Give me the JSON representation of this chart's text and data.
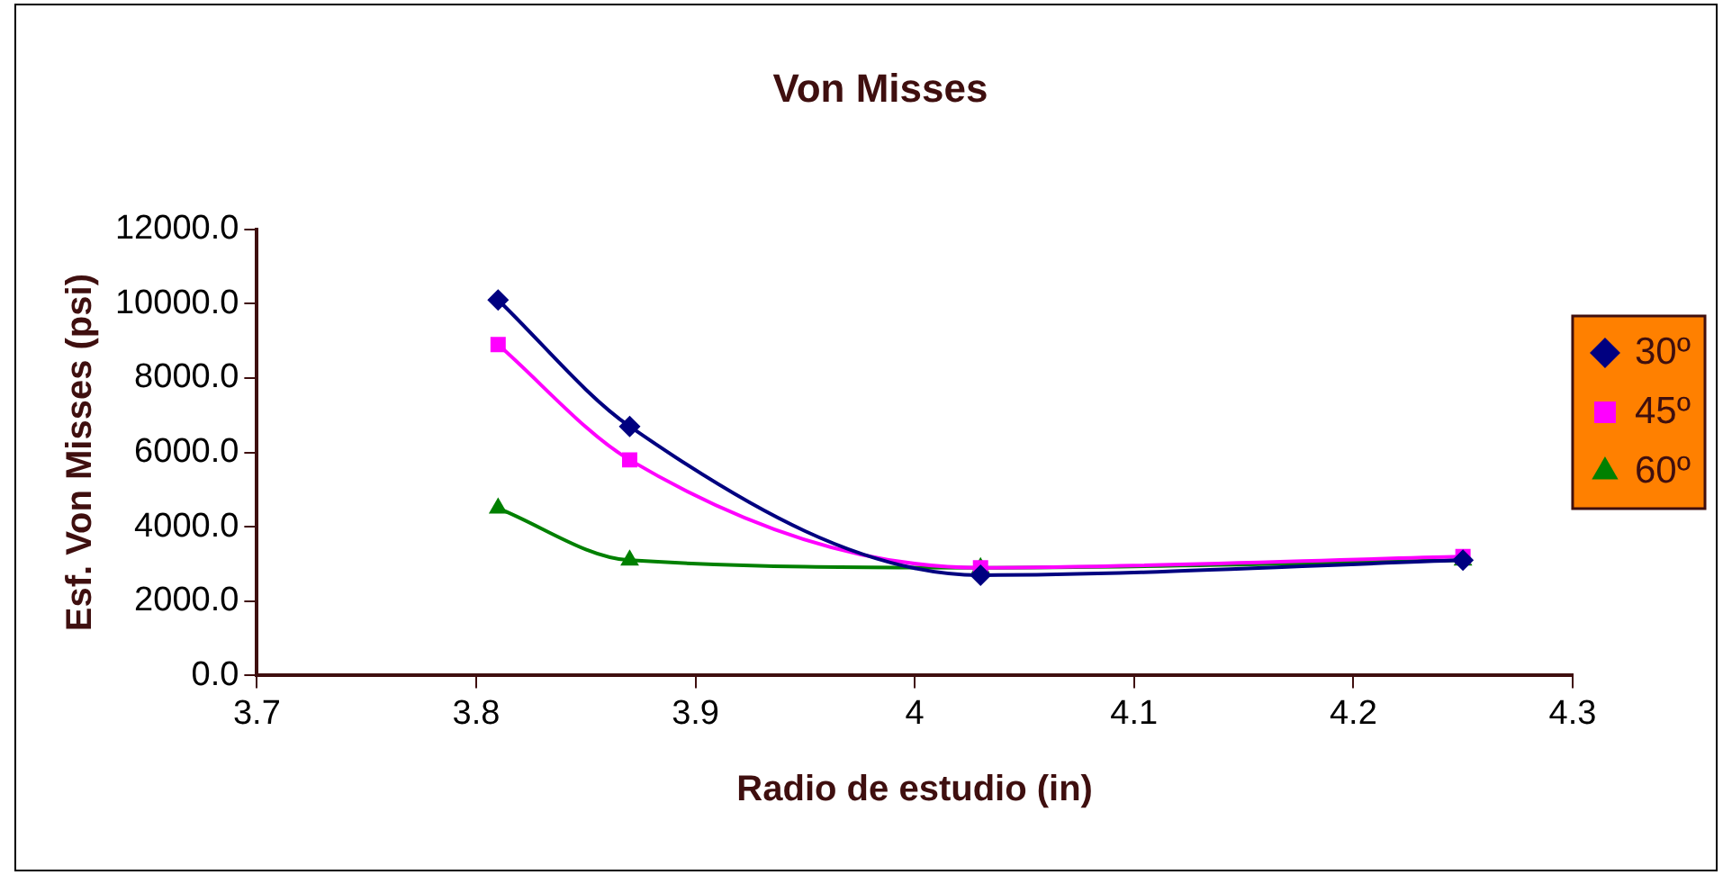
{
  "chart_data": {
    "type": "line",
    "title": "Von Misses",
    "xlabel": "Radio de estudio (in)",
    "ylabel": "Esf. Von Misses (psi)",
    "x": [
      3.81,
      3.87,
      4.03,
      4.25
    ],
    "series": [
      {
        "name": "30º",
        "color": "#000080",
        "marker": "diamond",
        "values": [
          10100,
          6700,
          2700,
          3100
        ]
      },
      {
        "name": "45º",
        "color": "#ff00ff",
        "marker": "square",
        "values": [
          8900,
          5800,
          2900,
          3200
        ]
      },
      {
        "name": "60º",
        "color": "#008000",
        "marker": "triangle",
        "values": [
          4500,
          3100,
          2900,
          3100
        ]
      }
    ],
    "xlim": [
      3.7,
      4.3
    ],
    "xticks": [
      3.7,
      3.8,
      3.9,
      4,
      4.1,
      4.2,
      4.3
    ],
    "ylim": [
      0,
      12000
    ],
    "yticks": [
      {
        "value": 0,
        "label": "0.0"
      },
      {
        "value": 2000,
        "label": "2000.0"
      },
      {
        "value": 4000,
        "label": "4000.0"
      },
      {
        "value": 6000,
        "label": "6000.0"
      },
      {
        "value": 8000,
        "label": "8000.0"
      },
      {
        "value": 10000,
        "label": "10000.0"
      },
      {
        "value": 12000,
        "label": "12000.0"
      }
    ],
    "grid": false,
    "legend": "right",
    "line_style": "solid"
  }
}
